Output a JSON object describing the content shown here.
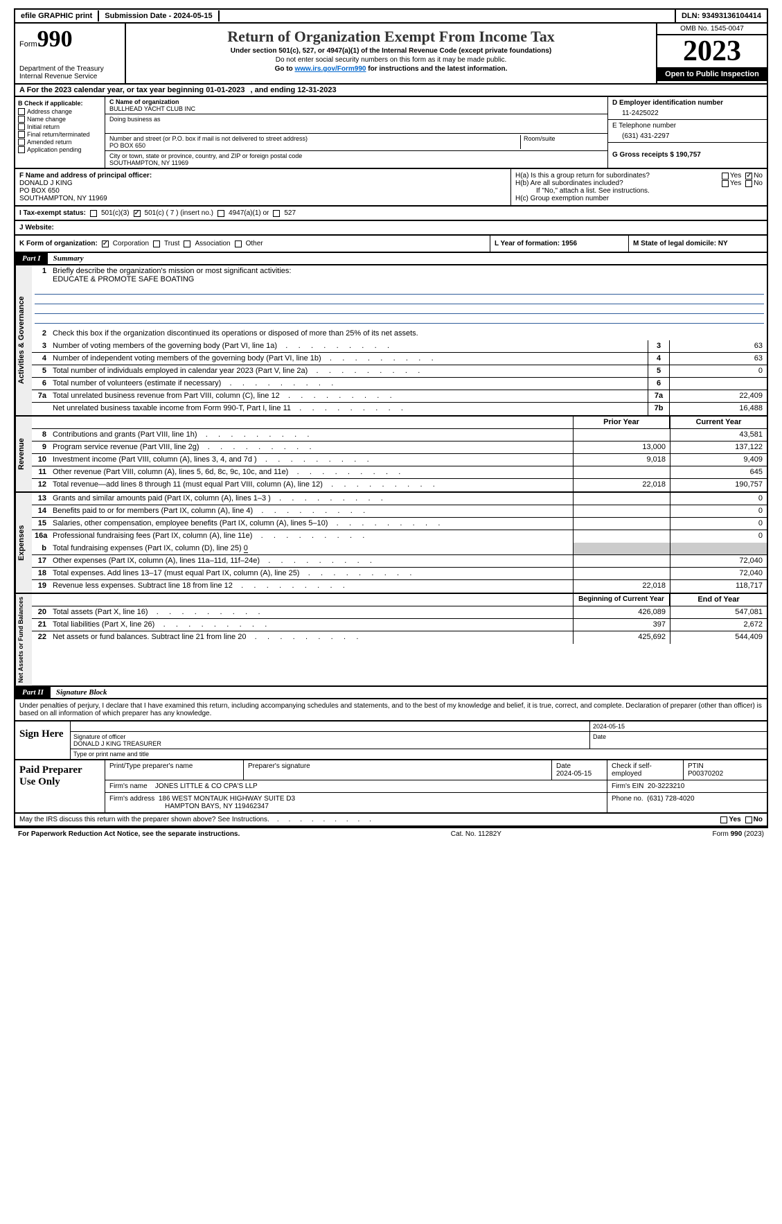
{
  "top": {
    "efile": "efile GRAPHIC print",
    "submission_date_label": "Submission Date - 2024-05-15",
    "dln_label": "DLN: 93493136104414"
  },
  "header": {
    "form_label": "Form",
    "form_number": "990",
    "dept": "Department of the Treasury\nInternal Revenue Service",
    "title": "Return of Organization Exempt From Income Tax",
    "sub1": "Under section 501(c), 527, or 4947(a)(1) of the Internal Revenue Code (except private foundations)",
    "sub2": "Do not enter social security numbers on this form as it may be made public.",
    "sub3_prefix": "Go to ",
    "sub3_link": "www.irs.gov/Form990",
    "sub3_suffix": " for instructions and the latest information.",
    "omb": "OMB No. 1545-0047",
    "year": "2023",
    "inspection": "Open to Public Inspection"
  },
  "rowA": {
    "prefix": "A For the 2023 calendar year, or tax year beginning 01-01-2023",
    "mid": ", and ending 12-31-2023"
  },
  "colB": {
    "label": "B Check if applicable:",
    "items": [
      "Address change",
      "Name change",
      "Initial return",
      "Final return/terminated",
      "Amended return",
      "Application pending"
    ]
  },
  "colC": {
    "name_label": "C Name of organization",
    "name": "BULLHEAD YACHT CLUB INC",
    "dba_label": "Doing business as",
    "addr_label": "Number and street (or P.O. box if mail is not delivered to street address)",
    "room_label": "Room/suite",
    "addr": "PO BOX 650",
    "city_label": "City or town, state or province, country, and ZIP or foreign postal code",
    "city": "SOUTHAMPTON, NY  11969"
  },
  "colDE": {
    "d_label": "D Employer identification number",
    "d_value": "11-2425022",
    "e_label": "E Telephone number",
    "e_value": "(631) 431-2297",
    "g_label": "G Gross receipts $ 190,757"
  },
  "rowF": {
    "label": "F  Name and address of principal officer:",
    "line1": "DONALD J KING",
    "line2": "PO BOX 650",
    "line3": "SOUTHAMPTON, NY  11969"
  },
  "rowH": {
    "ha_label": "H(a)  Is this a group return for subordinates?",
    "hb_label": "H(b)  Are all subordinates included?",
    "hb_note": "If \"No,\" attach a list. See instructions.",
    "hc_label": "H(c)  Group exemption number",
    "yes": "Yes",
    "no": "No"
  },
  "rowI": {
    "label": "I  Tax-exempt status:",
    "opt1": "501(c)(3)",
    "opt2": "501(c) ( 7 ) (insert no.)",
    "opt3": "4947(a)(1) or",
    "opt4": "527"
  },
  "rowJ": {
    "label": "J  Website:"
  },
  "rowK": {
    "label": "K Form of organization:",
    "opt1": "Corporation",
    "opt2": "Trust",
    "opt3": "Association",
    "opt4": "Other"
  },
  "rowL": {
    "label": "L Year of formation: 1956"
  },
  "rowM": {
    "label": "M State of legal domicile: NY"
  },
  "part1": {
    "num": "Part I",
    "title": "Summary"
  },
  "summary": {
    "sideA": "Activities & Governance",
    "sideR": "Revenue",
    "sideE": "Expenses",
    "sideN": "Net Assets or Fund Balances",
    "line1_label": "Briefly describe the organization's mission or most significant activities:",
    "line1_value": "EDUCATE & PROMOTE SAFE BOATING",
    "line2_label": "Check this box        if the organization discontinued its operations or disposed of more than 25% of its net assets.",
    "rows_a": [
      {
        "n": "3",
        "t": "Number of voting members of the governing body (Part VI, line 1a)",
        "k": "3",
        "v": "63"
      },
      {
        "n": "4",
        "t": "Number of independent voting members of the governing body (Part VI, line 1b)",
        "k": "4",
        "v": "63"
      },
      {
        "n": "5",
        "t": "Total number of individuals employed in calendar year 2023 (Part V, line 2a)",
        "k": "5",
        "v": "0"
      },
      {
        "n": "6",
        "t": "Total number of volunteers (estimate if necessary)",
        "k": "6",
        "v": ""
      },
      {
        "n": "7a",
        "t": "Total unrelated business revenue from Part VIII, column (C), line 12",
        "k": "7a",
        "v": "22,409"
      },
      {
        "n": "",
        "t": "Net unrelated business taxable income from Form 990-T, Part I, line 11",
        "k": "7b",
        "v": "16,488"
      }
    ],
    "head_prior": "Prior Year",
    "head_current": "Current Year",
    "rows_r": [
      {
        "n": "8",
        "t": "Contributions and grants (Part VIII, line 1h)",
        "p": "",
        "c": "43,581"
      },
      {
        "n": "9",
        "t": "Program service revenue (Part VIII, line 2g)",
        "p": "13,000",
        "c": "137,122"
      },
      {
        "n": "10",
        "t": "Investment income (Part VIII, column (A), lines 3, 4, and 7d )",
        "p": "9,018",
        "c": "9,409"
      },
      {
        "n": "11",
        "t": "Other revenue (Part VIII, column (A), lines 5, 6d, 8c, 9c, 10c, and 11e)",
        "p": "",
        "c": "645"
      },
      {
        "n": "12",
        "t": "Total revenue—add lines 8 through 11 (must equal Part VIII, column (A), line 12)",
        "p": "22,018",
        "c": "190,757"
      }
    ],
    "rows_e": [
      {
        "n": "13",
        "t": "Grants and similar amounts paid (Part IX, column (A), lines 1–3 )",
        "p": "",
        "c": "0"
      },
      {
        "n": "14",
        "t": "Benefits paid to or for members (Part IX, column (A), line 4)",
        "p": "",
        "c": "0"
      },
      {
        "n": "15",
        "t": "Salaries, other compensation, employee benefits (Part IX, column (A), lines 5–10)",
        "p": "",
        "c": "0"
      },
      {
        "n": "16a",
        "t": "Professional fundraising fees (Part IX, column (A), line 11e)",
        "p": "",
        "c": "0"
      }
    ],
    "row_16b_label": "Total fundraising expenses (Part IX, column (D), line 25)",
    "row_16b_val": "0",
    "rows_e2": [
      {
        "n": "17",
        "t": "Other expenses (Part IX, column (A), lines 11a–11d, 11f–24e)",
        "p": "",
        "c": "72,040"
      },
      {
        "n": "18",
        "t": "Total expenses. Add lines 13–17 (must equal Part IX, column (A), line 25)",
        "p": "",
        "c": "72,040"
      },
      {
        "n": "19",
        "t": "Revenue less expenses. Subtract line 18 from line 12",
        "p": "22,018",
        "c": "118,717"
      }
    ],
    "head_begin": "Beginning of Current Year",
    "head_end": "End of Year",
    "rows_n": [
      {
        "n": "20",
        "t": "Total assets (Part X, line 16)",
        "p": "426,089",
        "c": "547,081"
      },
      {
        "n": "21",
        "t": "Total liabilities (Part X, line 26)",
        "p": "397",
        "c": "2,672"
      },
      {
        "n": "22",
        "t": "Net assets or fund balances. Subtract line 21 from line 20",
        "p": "425,692",
        "c": "544,409"
      }
    ]
  },
  "part2": {
    "num": "Part II",
    "title": "Signature Block"
  },
  "sig": {
    "declaration": "Under penalties of perjury, I declare that I have examined this return, including accompanying schedules and statements, and to the best of my knowledge and belief, it is true, correct, and complete. Declaration of preparer (other than officer) is based on all information of which preparer has any knowledge.",
    "sign_here": "Sign Here",
    "sig_label": "Signature of officer",
    "date_label": "Date",
    "date_val": "2024-05-15",
    "name_val": "DONALD J KING  TREASURER",
    "name_label": "Type or print name and title"
  },
  "preparer": {
    "label": "Paid Preparer Use Only",
    "col1": "Print/Type preparer's name",
    "col2": "Preparer's signature",
    "col3": "Date",
    "col3v": "2024-05-15",
    "col4": "Check         if self-employed",
    "col5": "PTIN",
    "col5v": "P00370202",
    "firm_label": "Firm's name",
    "firm_name": "JONES LITTLE & CO CPA'S LLP",
    "firm_ein_label": "Firm's EIN",
    "firm_ein": "20-3223210",
    "firm_addr_label": "Firm's address",
    "firm_addr": "186 WEST MONTAUK HIGHWAY SUITE D3",
    "firm_city": "HAMPTON BAYS, NY  119462347",
    "phone_label": "Phone no.",
    "phone": "(631) 728-4020"
  },
  "bottom": {
    "discuss": "May the IRS discuss this return with the preparer shown above? See Instructions.",
    "yes": "Yes",
    "no": "No"
  },
  "footer": {
    "left": "For Paperwork Reduction Act Notice, see the separate instructions.",
    "mid": "Cat. No. 11282Y",
    "right_prefix": "Form ",
    "right_form": "990",
    "right_suffix": " (2023)"
  }
}
